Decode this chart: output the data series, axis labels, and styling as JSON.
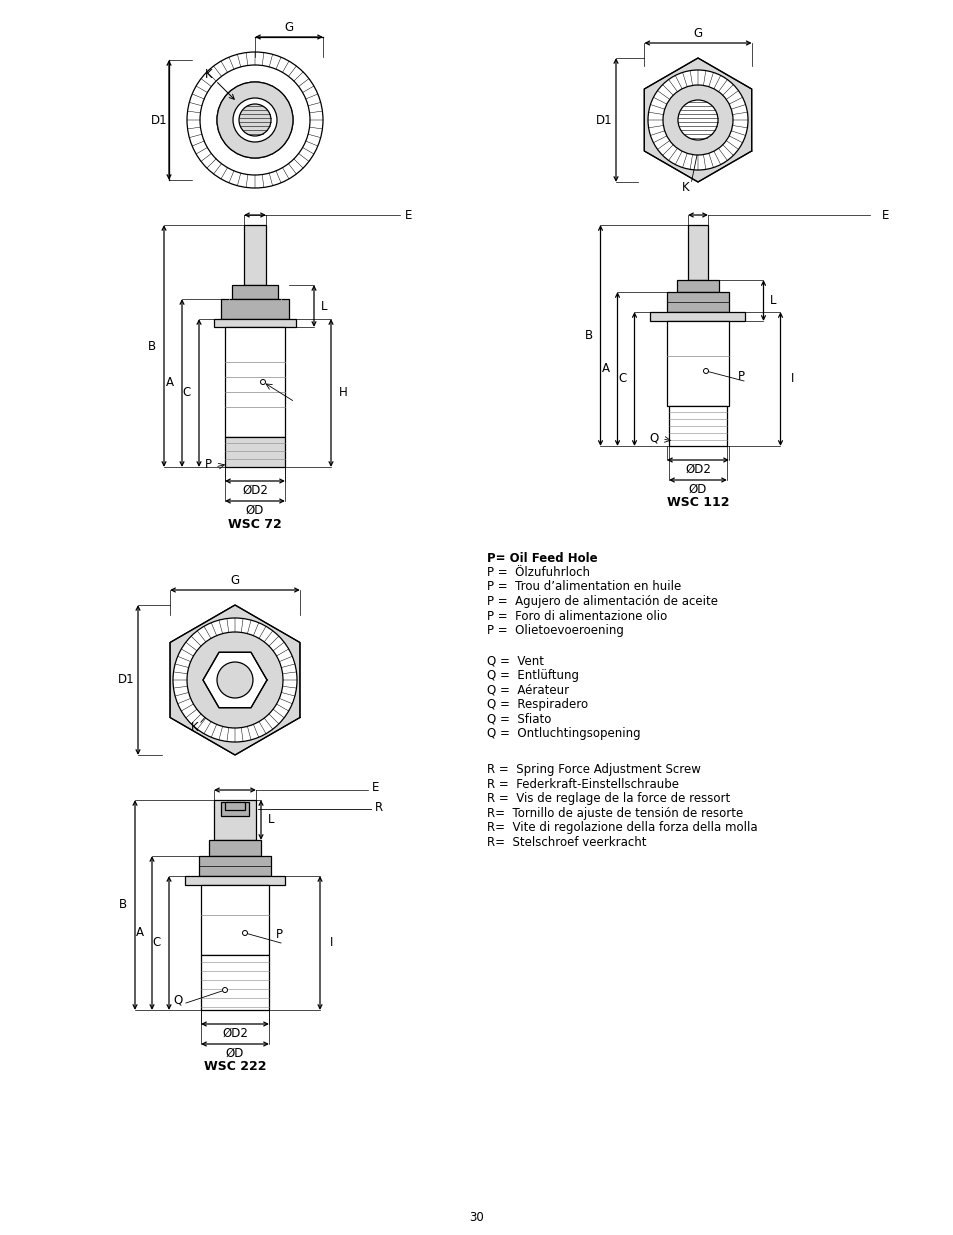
{
  "page_number": "30",
  "bg": "#ffffff",
  "lc": "#000000",
  "tc": "#000000",
  "gray": "#cccccc",
  "descriptions_P": [
    "P= Oil Feed Hole",
    "P =  Ölzufuhrloch",
    "P =  Trou d’alimentation en huile",
    "P =  Agujero de alimentación de aceite",
    "P =  Foro di alimentazione olio",
    "P =  Olietoevoeroening"
  ],
  "descriptions_Q": [
    "Q =  Vent",
    "Q =  Entlüftung",
    "Q =  Aérateur",
    "Q =  Respiradero",
    "Q =  Sfiato",
    "Q =  Ontluchtingsopening"
  ],
  "descriptions_R": [
    "R =  Spring Force Adjustment Screw",
    "R =  Federkraft-Einstellschraube",
    "R =  Vis de reglage de la force de ressort",
    "R=  Tornillo de ajuste de tensión de resorte",
    "R=  Vite di regolazione della forza della molla",
    "R=  Stelschroef veerkracht"
  ]
}
